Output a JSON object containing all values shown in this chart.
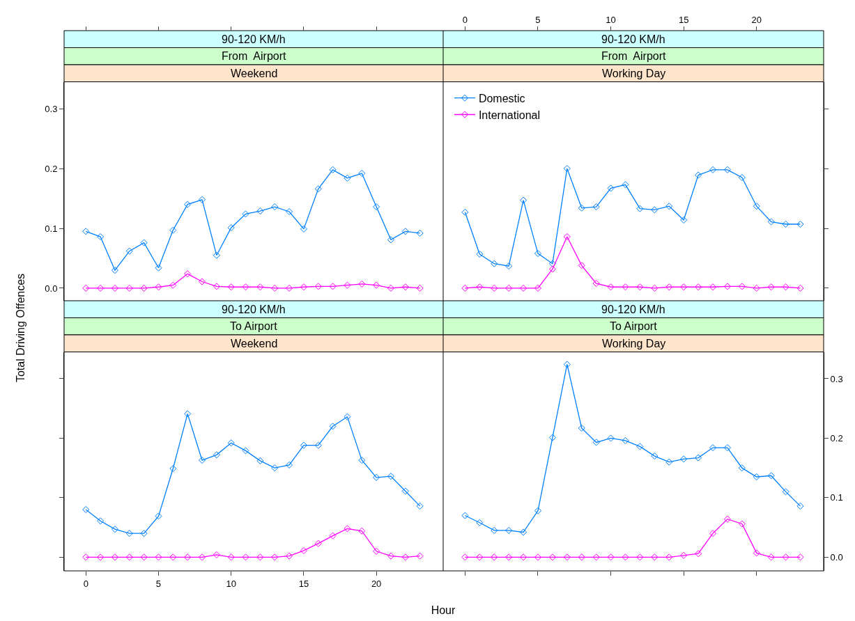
{
  "chart_data": [
    {
      "type": "line",
      "title": "90-120 KM/h",
      "subtitle": "From  Airport",
      "annotations": [
        "Weekend"
      ],
      "ylabel": "Total Driving Offences",
      "x": [
        0,
        1,
        2,
        3,
        4,
        5,
        6,
        7,
        8,
        9,
        10,
        11,
        12,
        13,
        14,
        15,
        16,
        17,
        18,
        19,
        20,
        21,
        22,
        23
      ],
      "xlim": [
        -1.5,
        24.6
      ],
      "xticks": [
        0,
        5,
        10,
        15,
        20
      ],
      "ylim": [
        -0.021,
        0.345
      ],
      "yticks": [
        {
          "value": 0,
          "label": "0.0"
        },
        0.1,
        0.2,
        0.3
      ],
      "tick_labels": "y",
      "marker": "diamond",
      "line_style": "solid",
      "grid": false,
      "legend": false,
      "series": [
        {
          "color": "#0080ff",
          "values": [
            0.095,
            0.086,
            0.03,
            0.062,
            0.076,
            0.034,
            0.097,
            0.14,
            0.148,
            0.055,
            0.101,
            0.124,
            0.129,
            0.136,
            0.128,
            0.099,
            0.166,
            0.198,
            0.184,
            0.192,
            0.136,
            0.081,
            0.095,
            0.092
          ]
        },
        {
          "color": "#ff00ff",
          "values": [
            0,
            0,
            0,
            0,
            0,
            0.002,
            0.005,
            0.024,
            0.011,
            0.003,
            0.002,
            0.002,
            0.002,
            0,
            0,
            0.002,
            0.003,
            0.003,
            0.005,
            0.007,
            0.005,
            0,
            0.002,
            0
          ]
        }
      ]
    },
    {
      "type": "line",
      "title": "90-120 KM/h",
      "subtitle": "From  Airport",
      "annotations": [
        "Working Day"
      ],
      "x": [
        0,
        1,
        2,
        3,
        4,
        5,
        6,
        7,
        8,
        9,
        10,
        11,
        12,
        13,
        14,
        15,
        16,
        17,
        18,
        19,
        20,
        21,
        22,
        23
      ],
      "xlim": [
        -1.5,
        24.6
      ],
      "xticks": [
        0,
        5,
        10,
        15,
        20
      ],
      "ylim": [
        -0.021,
        0.345
      ],
      "yticks": [
        0,
        0.1,
        0.2,
        0.3
      ],
      "tick_labels": "x",
      "marker": "diamond",
      "line_style": "solid",
      "grid": false,
      "legend": "top left",
      "series": [
        {
          "name": "Domestic",
          "color": "#0080ff",
          "values": [
            0.127,
            0.057,
            0.041,
            0.037,
            0.147,
            0.058,
            0.041,
            0.2,
            0.134,
            0.136,
            0.167,
            0.173,
            0.133,
            0.131,
            0.137,
            0.114,
            0.189,
            0.198,
            0.198,
            0.185,
            0.137,
            0.111,
            0.107,
            0.107
          ]
        },
        {
          "name": "International",
          "color": "#ff00ff",
          "values": [
            0,
            0.002,
            0,
            0,
            0,
            0,
            0.032,
            0.086,
            0.038,
            0.008,
            0.002,
            0.002,
            0.002,
            0,
            0.002,
            0.002,
            0.002,
            0.002,
            0.003,
            0.003,
            0,
            0.002,
            0.002,
            0
          ]
        }
      ]
    },
    {
      "type": "line",
      "title": "90-120 KM/h",
      "subtitle": "To Airport",
      "annotations": [
        "Weekend"
      ],
      "xlabel": "Hour",
      "x": [
        0,
        1,
        2,
        3,
        4,
        5,
        6,
        7,
        8,
        9,
        10,
        11,
        12,
        13,
        14,
        15,
        16,
        17,
        18,
        19,
        20,
        21,
        22,
        23
      ],
      "xlim": [
        -1.5,
        24.6
      ],
      "xticks": [
        0,
        5,
        10,
        15,
        20
      ],
      "ylim": [
        -0.023,
        0.345
      ],
      "yticks": [
        0,
        0.1,
        0.2,
        0.3
      ],
      "tick_labels": "x",
      "marker": "diamond",
      "line_style": "solid",
      "grid": false,
      "legend": false,
      "series": [
        {
          "color": "#0080ff",
          "values": [
            0.08,
            0.061,
            0.047,
            0.04,
            0.04,
            0.069,
            0.149,
            0.241,
            0.163,
            0.172,
            0.192,
            0.179,
            0.162,
            0.15,
            0.155,
            0.188,
            0.188,
            0.22,
            0.236,
            0.163,
            0.134,
            0.136,
            0.111,
            0.086
          ]
        },
        {
          "color": "#ff00ff",
          "values": [
            0,
            0,
            0,
            0,
            0,
            0,
            0,
            0,
            0,
            0.004,
            0,
            0,
            0,
            0,
            0.002,
            0.011,
            0.023,
            0.036,
            0.048,
            0.044,
            0.01,
            0.002,
            0,
            0.002
          ]
        }
      ]
    },
    {
      "type": "line",
      "title": "90-120 KM/h",
      "subtitle": "To Airport",
      "annotations": [
        "Working Day"
      ],
      "x": [
        0,
        1,
        2,
        3,
        4,
        5,
        6,
        7,
        8,
        9,
        10,
        11,
        12,
        13,
        14,
        15,
        16,
        17,
        18,
        19,
        20,
        21,
        22,
        23
      ],
      "xlim": [
        -1.5,
        24.6
      ],
      "xticks": [
        0,
        5,
        10,
        15,
        20
      ],
      "ylim": [
        -0.023,
        0.345
      ],
      "yticks": [
        {
          "value": 0,
          "label": "0.0"
        },
        0.1,
        0.2,
        0.3
      ],
      "tick_labels": "y",
      "marker": "diamond",
      "line_style": "solid",
      "grid": false,
      "legend": false,
      "series": [
        {
          "color": "#0080ff",
          "values": [
            0.07,
            0.058,
            0.045,
            0.045,
            0.042,
            0.078,
            0.201,
            0.324,
            0.217,
            0.193,
            0.2,
            0.196,
            0.186,
            0.17,
            0.16,
            0.165,
            0.167,
            0.184,
            0.184,
            0.15,
            0.135,
            0.137,
            0.11,
            0.086
          ]
        },
        {
          "color": "#ff00ff",
          "values": [
            0,
            0,
            0,
            0,
            0,
            0,
            0,
            0,
            0,
            0,
            0,
            0,
            0,
            0,
            0,
            0.003,
            0.006,
            0.04,
            0.064,
            0.056,
            0.007,
            0,
            0,
            0
          ]
        }
      ]
    }
  ]
}
